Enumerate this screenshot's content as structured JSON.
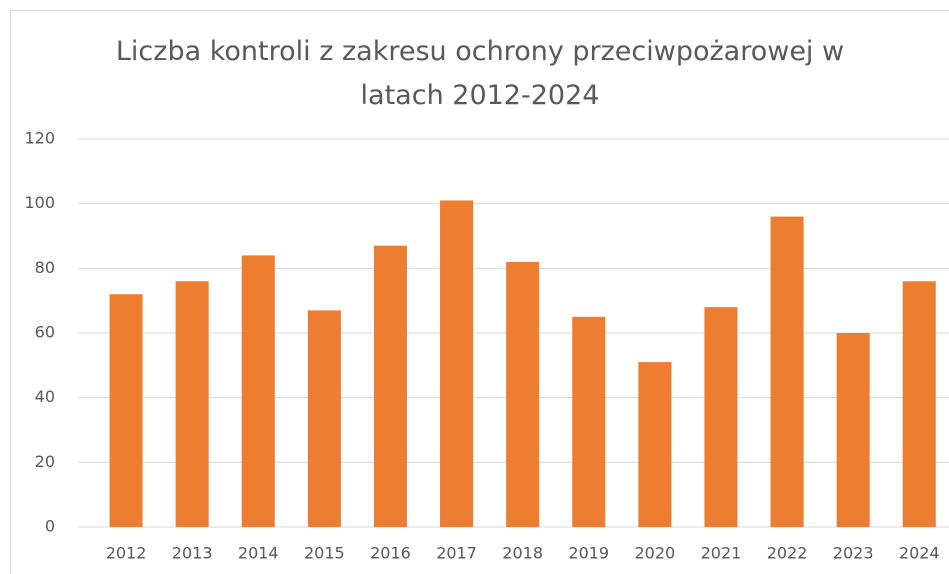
{
  "chart_data": {
    "type": "bar",
    "title": "Liczba kontroli z zakresu ochrony przeciwpożarowej w latach 2012-2024",
    "categories": [
      "2012",
      "2013",
      "2014",
      "2015",
      "2016",
      "2017",
      "2018",
      "2019",
      "2020",
      "2021",
      "2022",
      "2023",
      "2024"
    ],
    "values": [
      72,
      76,
      84,
      67,
      87,
      101,
      82,
      65,
      51,
      68,
      96,
      60,
      76
    ],
    "color": "#ed7d31",
    "ylim": [
      0,
      120
    ],
    "yticks": [
      0,
      20,
      40,
      60,
      80,
      100,
      120
    ],
    "grid": true
  }
}
